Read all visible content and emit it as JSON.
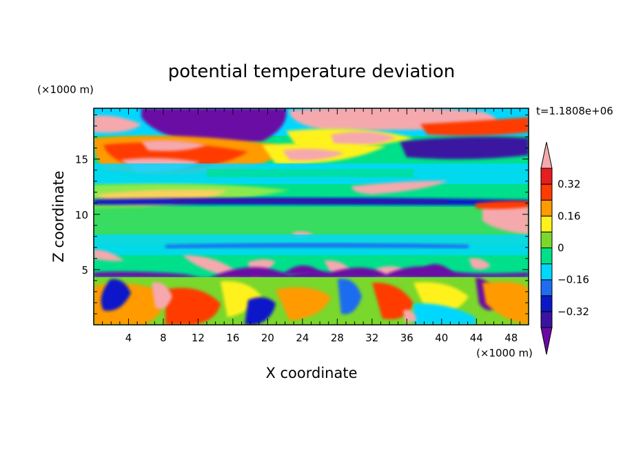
{
  "chart_data": {
    "type": "heatmap",
    "title": "potential temperature deviation",
    "xlabel": "X coordinate",
    "ylabel": "Z coordinate",
    "x_units": "(×1000 m)",
    "y_units": "(×1000 m)",
    "time_label": "t=1.1808e+06",
    "xlim": [
      0,
      50
    ],
    "ylim": [
      0,
      19.6
    ],
    "x_ticks": [
      4,
      8,
      12,
      16,
      20,
      24,
      28,
      32,
      36,
      40,
      44,
      48
    ],
    "x_minor_step": 1,
    "y_ticks": [
      5,
      10,
      15
    ],
    "y_minor_step": 1,
    "colorbar": {
      "levels": [
        -0.4,
        -0.32,
        -0.24,
        -0.16,
        -0.08,
        0,
        0.08,
        0.16,
        0.24,
        0.32,
        0.4
      ],
      "tick_labels": [
        "0.32",
        "0.16",
        "0",
        "−0.16",
        "−0.32"
      ],
      "tick_values": [
        0.32,
        0.16,
        0,
        -0.16,
        -0.32
      ],
      "colors": [
        "#6a0aa4",
        "#3a13a0",
        "#0b18c8",
        "#1e6cf0",
        "#00d7ff",
        "#00e08a",
        "#7ad72c",
        "#fff21a",
        "#ff9a00",
        "#ff3b00",
        "#e81d1d",
        "#f5a9ad"
      ],
      "extend": "both"
    },
    "bands": [
      {
        "z": [
          0,
          4.8
        ],
        "label": "lower turbulent layer: mixed orange/red/green with blue-purple plumes"
      },
      {
        "z": [
          4.3,
          5.0
        ],
        "label": "purple inversion band"
      },
      {
        "z": [
          5,
          9.5
        ],
        "label": "green/cyan layer"
      },
      {
        "z": [
          10.8,
          11.3
        ],
        "label": "thin blue/purple band"
      },
      {
        "z": [
          11.5,
          13.5
        ],
        "label": "cyan/green with pink lenses"
      },
      {
        "z": [
          13.8,
          14.6
        ],
        "label": "green/cyan band"
      },
      {
        "z": [
          15,
          17.5
        ],
        "label": "red/pink lenses with orange/yellow"
      },
      {
        "z": [
          17.5,
          19.6
        ],
        "label": "purple/pink top band"
      }
    ]
  }
}
